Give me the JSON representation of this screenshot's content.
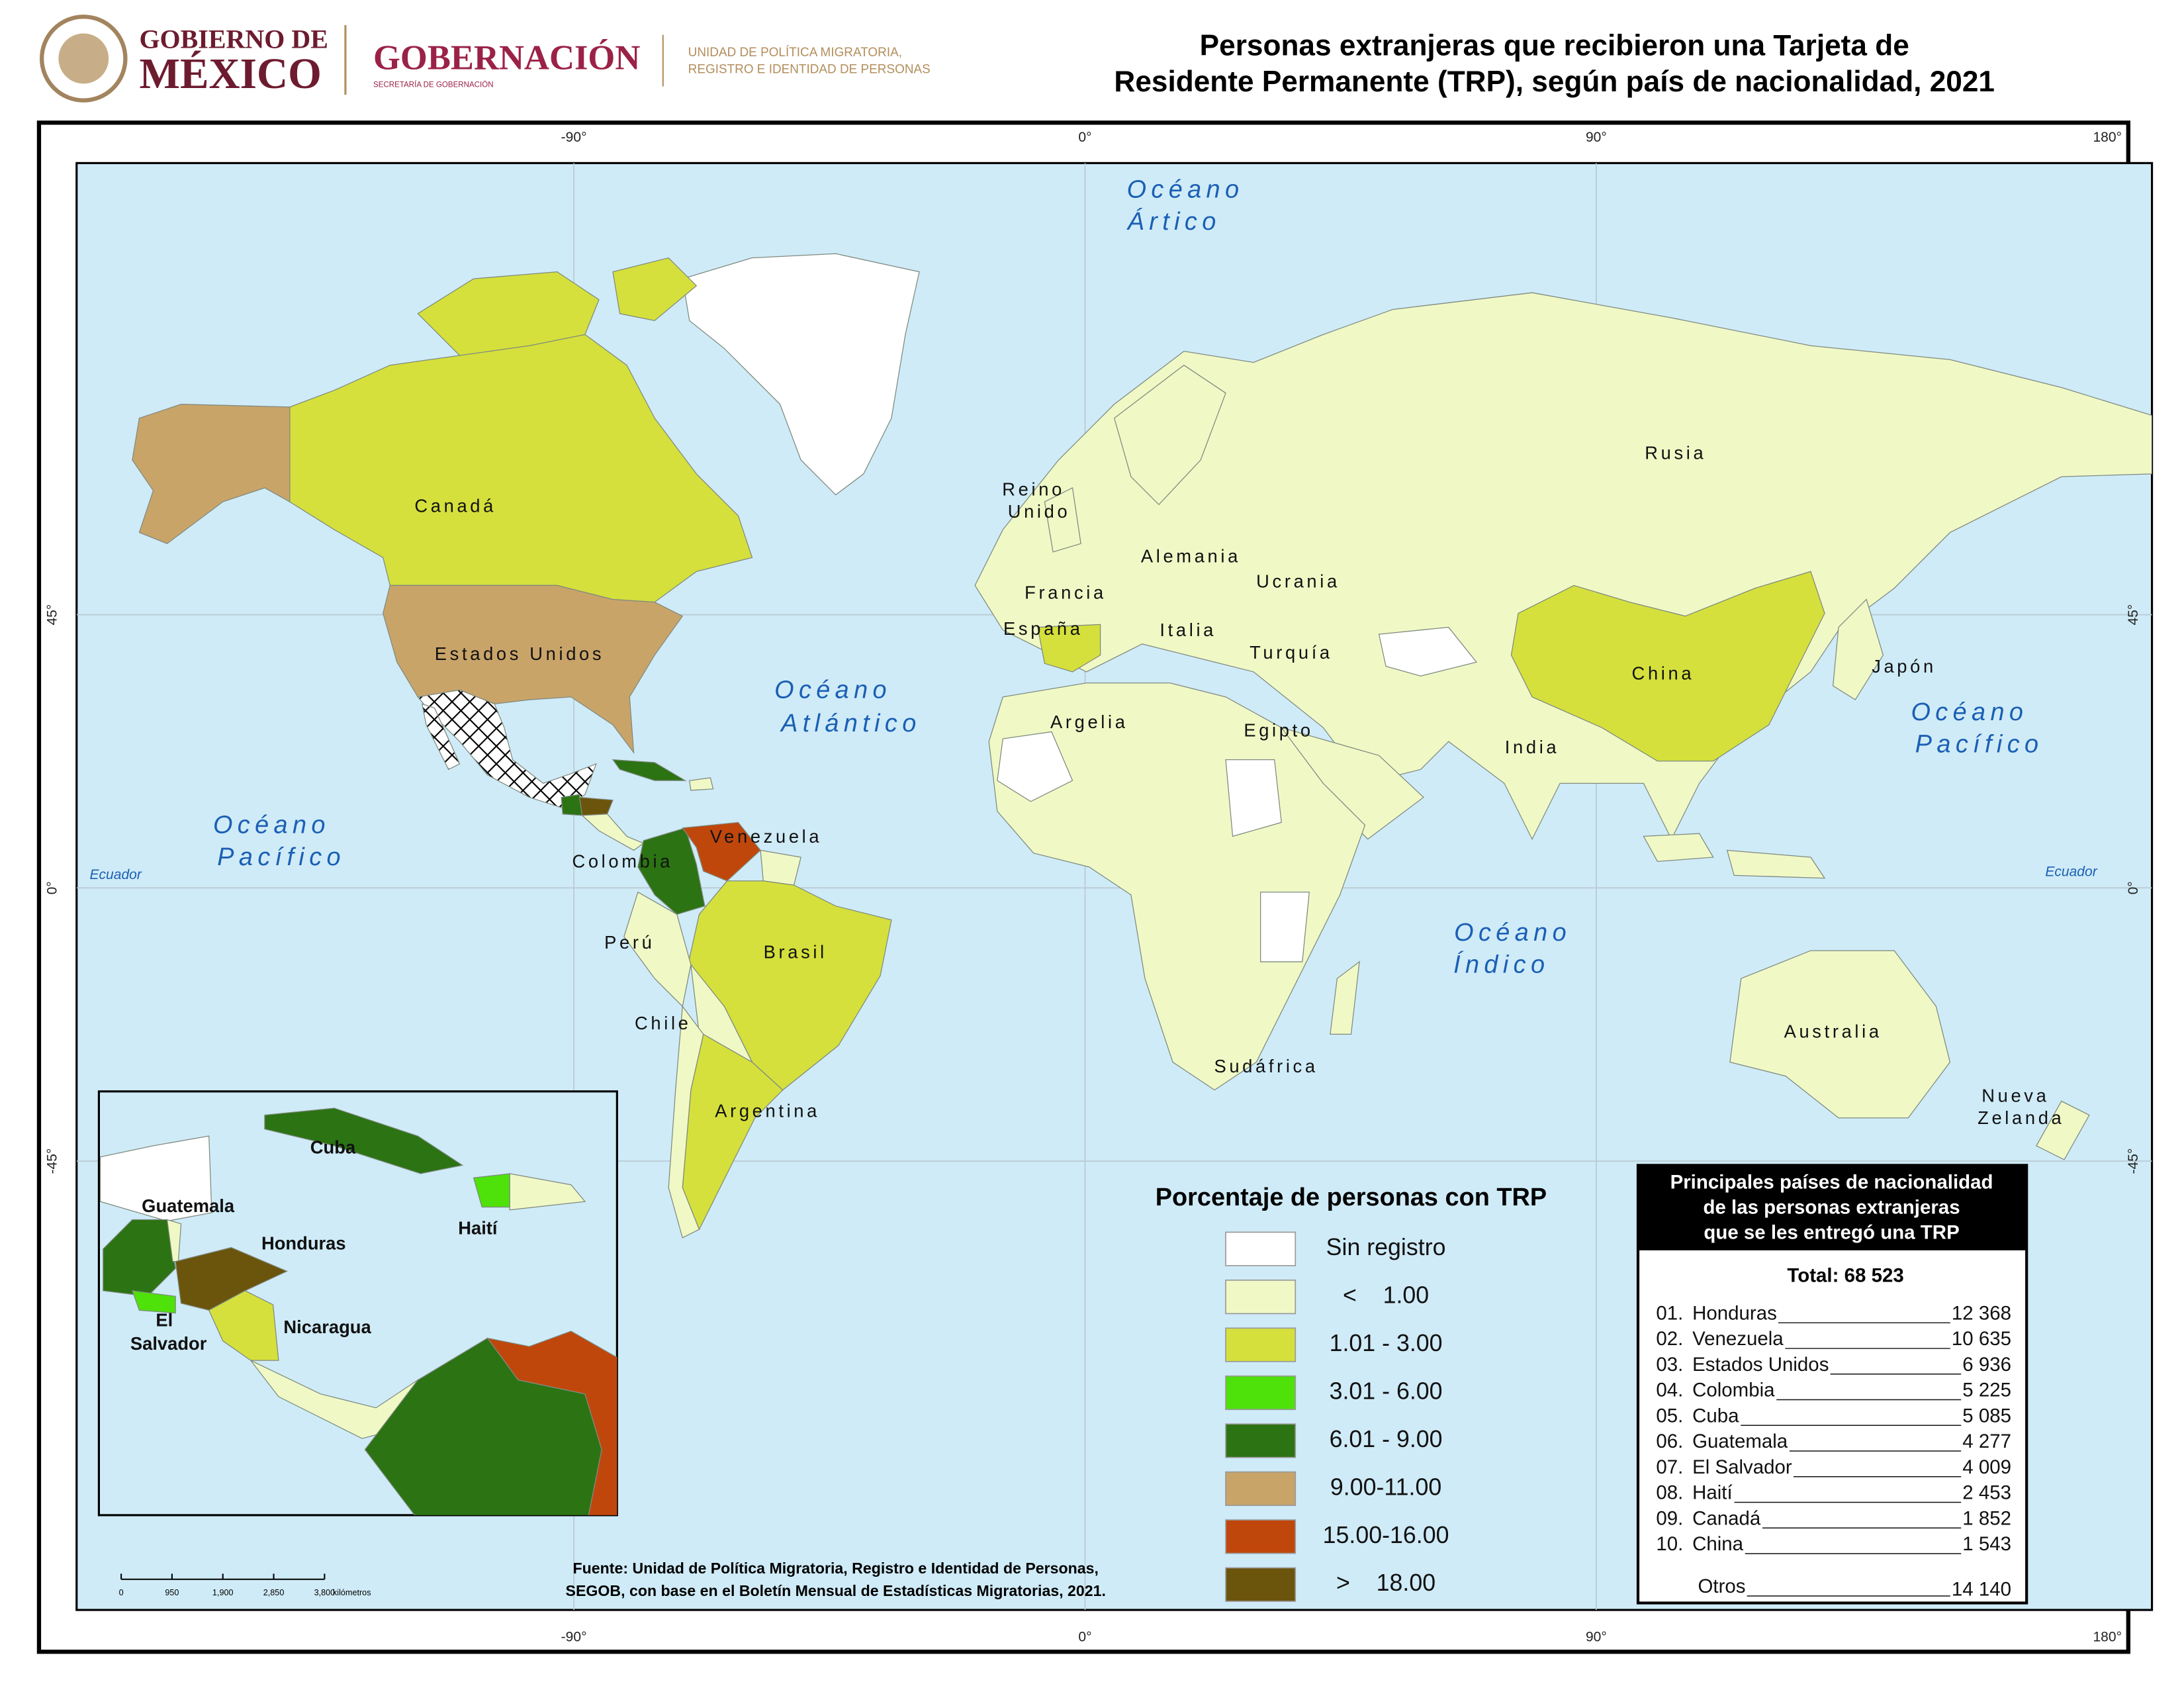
{
  "header": {
    "gov_line1": "GOBIERNO DE",
    "gov_line2": "MÉXICO",
    "ministry": "GOBERNACIÓN",
    "ministry_sub": "SECRETARÍA DE GOBERNACIÓN",
    "unit_line1": "UNIDAD DE POLÍTICA MIGRATORIA,",
    "unit_line2": "REGISTRO E IDENTIDAD DE PERSONAS"
  },
  "title": {
    "line1": "Personas extranjeras que recibieron una Tarjeta de",
    "line2": "Residente Permanente (TRP), según país de nacionalidad, 2021"
  },
  "graticule": {
    "longitudes": [
      "-90°",
      "0°",
      "90°",
      "180°"
    ],
    "latitudes": [
      "45°",
      "0°",
      "-45°"
    ],
    "equator": "Ecuador"
  },
  "oceans": [
    {
      "line1": "Océano",
      "line2": "Ártico"
    },
    {
      "line1": "Océano",
      "line2": "Atlántico"
    },
    {
      "line1": "Océano",
      "line2": "Pacífico"
    },
    {
      "line1": "Océano",
      "line2": "Pacífico"
    },
    {
      "line1": "Océano",
      "line2": "Índico"
    }
  ],
  "country_labels": [
    [
      "Canadá"
    ],
    [
      "Estados Unidos"
    ],
    [
      "Reino",
      "Unido"
    ],
    [
      "Alemania"
    ],
    [
      "Francia"
    ],
    [
      "Ucrania"
    ],
    [
      "España"
    ],
    [
      "Italia"
    ],
    [
      "Turquía"
    ],
    [
      "China"
    ],
    [
      "Japón"
    ],
    [
      "Rusia"
    ],
    [
      "Argelia"
    ],
    [
      "Egipto"
    ],
    [
      "India"
    ],
    [
      "Venezuela"
    ],
    [
      "Colombia"
    ],
    [
      "Perú"
    ],
    [
      "Brasil"
    ],
    [
      "Chile"
    ],
    [
      "Argentina"
    ],
    [
      "Sudáfrica"
    ],
    [
      "Australia"
    ],
    [
      "Nueva",
      "Zelanda"
    ]
  ],
  "inset_labels": [
    [
      "Cuba"
    ],
    [
      "Guatemala"
    ],
    [
      "Honduras"
    ],
    [
      "Haití"
    ],
    [
      "El",
      "Salvador"
    ],
    [
      "Nicaragua"
    ]
  ],
  "legend": {
    "title": "Porcentaje de personas con TRP",
    "items": [
      {
        "label": "Sin registro",
        "color": "#ffffff"
      },
      {
        "label": "<    1.00",
        "color": "#f0f9c6"
      },
      {
        "label": "1.01 - 3.00",
        "color": "#d5e03c"
      },
      {
        "label": "3.01 - 6.00",
        "color": "#4ee10a"
      },
      {
        "label": "6.01 - 9.00",
        "color": "#2c7313"
      },
      {
        "label": "9.00-11.00",
        "color": "#c9a469"
      },
      {
        "label": "15.00-16.00",
        "color": "#c0470b"
      },
      {
        "label": ">    18.00",
        "color": "#6b540c"
      }
    ]
  },
  "ranking": {
    "title": [
      "Principales países de nacionalidad",
      "de las personas extranjeras",
      "que se les entregó una TRP"
    ],
    "total": "Total: 68 523",
    "rows": [
      {
        "rank": "01.",
        "country": "Honduras",
        "value": "12 368"
      },
      {
        "rank": "02.",
        "country": "Venezuela",
        "value": "10 635"
      },
      {
        "rank": "03.",
        "country": "Estados Unidos",
        "value": "6 936"
      },
      {
        "rank": "04.",
        "country": "Colombia",
        "value": "5 225"
      },
      {
        "rank": "05.",
        "country": "Cuba",
        "value": "5 085"
      },
      {
        "rank": "06.",
        "country": "Guatemala",
        "value": "4 277"
      },
      {
        "rank": "07.",
        "country": "El Salvador",
        "value": "4 009"
      },
      {
        "rank": "08.",
        "country": "Haití",
        "value": "2 453"
      },
      {
        "rank": "09.",
        "country": "Canadá",
        "value": "1 852"
      },
      {
        "rank": "10.",
        "country": "China",
        "value": "1 543"
      }
    ],
    "others": {
      "label": "Otros",
      "value": "14 140"
    }
  },
  "source": {
    "line1": "Fuente: Unidad de Política Migratoria, Registro e Identidad de Personas,",
    "line2": "SEGOB, con base en el Boletín Mensual de Estadísticas Migratorias, 2021."
  },
  "scale": {
    "ticks": [
      "0",
      "950",
      "1,900",
      "2,850",
      "3,800"
    ],
    "unit": "kilómetros"
  }
}
